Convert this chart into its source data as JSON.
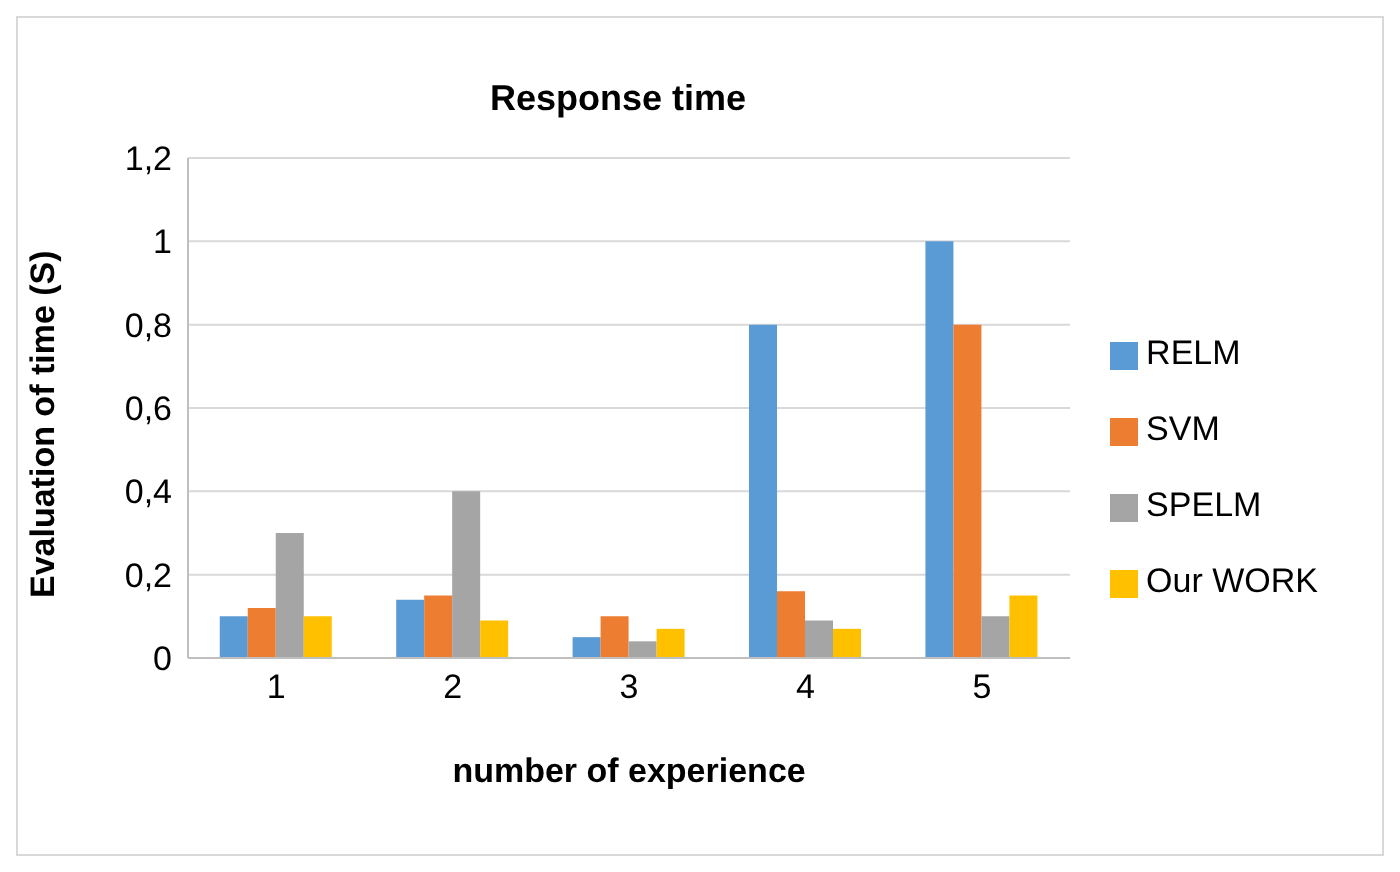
{
  "chart_data": {
    "type": "bar",
    "title": "Response time",
    "xlabel": "number of experience",
    "ylabel": "Evaluation of time (S)",
    "categories": [
      "1",
      "2",
      "3",
      "4",
      "5"
    ],
    "series": [
      {
        "name": "RELM",
        "color": "#5b9bd5",
        "values": [
          0.1,
          0.14,
          0.05,
          0.8,
          1
        ]
      },
      {
        "name": "SVM",
        "color": "#ed7d31",
        "values": [
          0.12,
          0.15,
          0.1,
          0.16,
          0.8
        ]
      },
      {
        "name": "SPELM",
        "color": "#a5a5a5",
        "values": [
          0.3,
          0.4,
          0.04,
          0.09,
          0.1
        ]
      },
      {
        "name": "Our WORK",
        "color": "#ffc000",
        "values": [
          0.1,
          0.09,
          0.07,
          0.07,
          0.15
        ]
      }
    ],
    "ylim": [
      0,
      1.2
    ],
    "yticks": [
      0,
      {
        "value": 0.2,
        "label": "0,2"
      },
      {
        "value": 0.4,
        "label": "0,4"
      },
      {
        "value": 0.6,
        "label": "0,6"
      },
      {
        "value": 0.8,
        "label": "0,8"
      },
      1,
      {
        "value": 1.2,
        "label": "1,2"
      }
    ],
    "grid": "y",
    "legend": "right"
  }
}
